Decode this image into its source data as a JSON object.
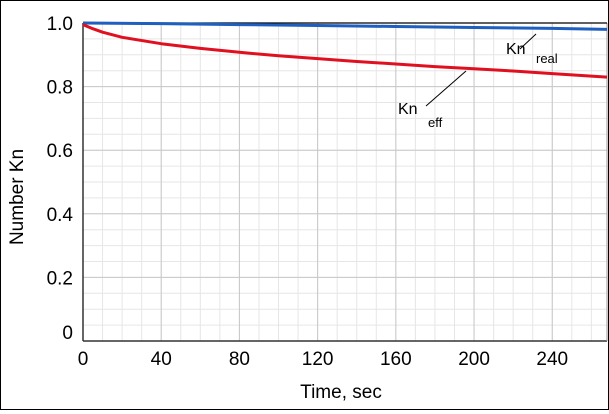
{
  "chart_data": {
    "type": "line",
    "xlabel": "Time, sec",
    "ylabel": "Number Kn",
    "xlim": [
      0,
      268
    ],
    "ylim": [
      0,
      1.0
    ],
    "x_ticks": [
      0,
      40,
      80,
      120,
      160,
      200,
      240
    ],
    "x_tick_labels": [
      "0",
      "40",
      "80",
      "120",
      "160",
      "200",
      "240"
    ],
    "y_ticks": [
      0,
      0.2,
      0.4,
      0.6,
      0.8,
      1.0
    ],
    "y_tick_labels": [
      "0",
      "0.2",
      "0.4",
      "0.6",
      "0.8",
      "1.0"
    ],
    "grid": true,
    "series": [
      {
        "label_main": "Kn",
        "label_sub": "real",
        "color": "#1f5fbf",
        "x": [
          0,
          40,
          80,
          120,
          160,
          200,
          240,
          268
        ],
        "y": [
          1.0,
          0.998,
          0.995,
          0.992,
          0.989,
          0.986,
          0.983,
          0.98
        ]
      },
      {
        "label_main": "Kn",
        "label_sub": "eff",
        "color": "#e01020",
        "x": [
          0,
          5,
          10,
          20,
          40,
          60,
          80,
          100,
          120,
          140,
          160,
          180,
          200,
          220,
          240,
          268
        ],
        "y": [
          0.995,
          0.982,
          0.971,
          0.955,
          0.935,
          0.92,
          0.908,
          0.897,
          0.888,
          0.879,
          0.871,
          0.863,
          0.856,
          0.849,
          0.841,
          0.83
        ]
      }
    ],
    "top_line_color": "#000000"
  }
}
